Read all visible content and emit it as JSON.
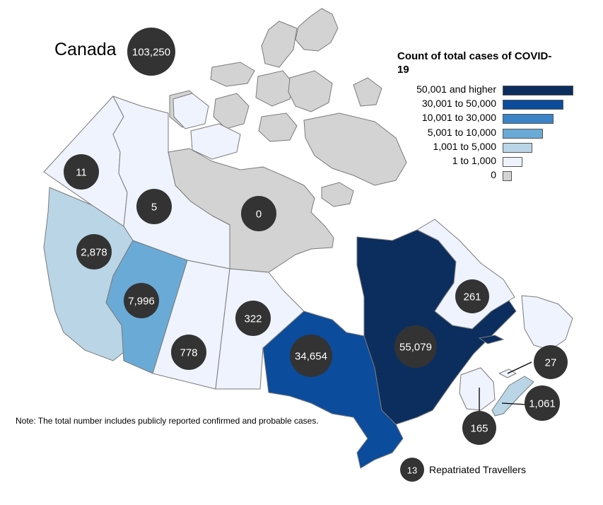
{
  "country": {
    "name": "Canada",
    "total": "103,250"
  },
  "legend": {
    "title": "Count of total cases of COVID-19",
    "items": [
      {
        "label": "50,001 and higher",
        "color": "#0b2e5e"
      },
      {
        "label": "30,001 to 50,000",
        "color": "#0b4c9c"
      },
      {
        "label": "10,001 to 30,000",
        "color": "#3a83c6"
      },
      {
        "label": "5,001 to 10,000",
        "color": "#6aaad6"
      },
      {
        "label": "1,001 to 5,000",
        "color": "#b9d5e6"
      },
      {
        "label": "1 to 1,000",
        "color": "#eef3fd"
      },
      {
        "label": "0",
        "color": "#d3d3d3"
      }
    ]
  },
  "regions": [
    {
      "id": "bc",
      "name": "British Columbia",
      "cases": "2,878",
      "color": "#b9d5e6"
    },
    {
      "id": "ab",
      "name": "Alberta",
      "cases": "7,996",
      "color": "#6aaad6"
    },
    {
      "id": "sk",
      "name": "Saskatchewan",
      "cases": "778",
      "color": "#eef3fd"
    },
    {
      "id": "mb",
      "name": "Manitoba",
      "cases": "322",
      "color": "#eef3fd"
    },
    {
      "id": "on",
      "name": "Ontario",
      "cases": "34,654",
      "color": "#0b4c9c"
    },
    {
      "id": "qc",
      "name": "Quebec",
      "cases": "55,079",
      "color": "#0b2e5e"
    },
    {
      "id": "nl",
      "name": "Newfoundland and Labrador",
      "cases": "261",
      "color": "#eef3fd"
    },
    {
      "id": "pe",
      "name": "Prince Edward Island",
      "cases": "27",
      "color": "#eef3fd"
    },
    {
      "id": "ns",
      "name": "Nova Scotia",
      "cases": "1,061",
      "color": "#b9d5e6"
    },
    {
      "id": "nb",
      "name": "New Brunswick",
      "cases": "165",
      "color": "#eef3fd"
    },
    {
      "id": "yt",
      "name": "Yukon",
      "cases": "11",
      "color": "#eef3fd"
    },
    {
      "id": "nt",
      "name": "Northwest Territories",
      "cases": "5",
      "color": "#eef3fd"
    },
    {
      "id": "nu",
      "name": "Nunavut",
      "cases": "0",
      "color": "#d3d3d3"
    }
  ],
  "repatriated": {
    "cases": "13",
    "label": "Repatriated Travellers"
  },
  "note": "Note: The total number includes publicly reported confirmed and probable cases.",
  "bubble_color": "#333333"
}
